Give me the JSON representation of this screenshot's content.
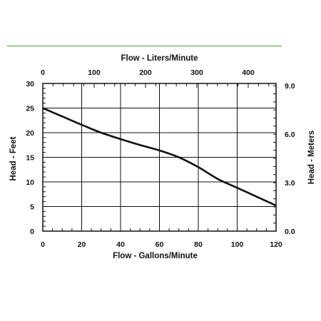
{
  "colors": {
    "rule": "#5a9a3c",
    "line": "#111111",
    "grid": "#111111"
  },
  "chart_data": {
    "type": "line",
    "grid": true,
    "x": {
      "label": "Flow - Gallons/Minute",
      "range": [
        0,
        120
      ],
      "ticks": [
        0,
        20,
        40,
        60,
        80,
        100,
        120
      ],
      "tick_labels": [
        "0",
        "20",
        "40",
        "60",
        "80",
        "100",
        "120"
      ]
    },
    "x_top": {
      "label": "Flow - Liters/Minute",
      "range": [
        0,
        454.2
      ],
      "ticks": [
        0,
        100,
        200,
        300,
        400
      ],
      "tick_labels": [
        "0",
        "100",
        "200",
        "300",
        "400"
      ]
    },
    "y_left": {
      "label": "Head - Feet",
      "range": [
        0,
        30
      ],
      "ticks": [
        0,
        5,
        10,
        15,
        20,
        25,
        30
      ],
      "tick_labels": [
        "0",
        "5",
        "10",
        "15",
        "20",
        "25",
        "30"
      ]
    },
    "y_right": {
      "label": "Head - Meters",
      "range": [
        0,
        9.14
      ],
      "ticks": [
        0,
        3,
        6,
        9
      ],
      "tick_labels": [
        "0.0",
        "3.0",
        "6.0",
        "9.0"
      ]
    },
    "series": [
      {
        "x": [
          0,
          10,
          20,
          30,
          40,
          50,
          60,
          70,
          80,
          90,
          100,
          110,
          120
        ],
        "y": [
          25.0,
          23.3,
          21.6,
          20.0,
          18.7,
          17.5,
          16.4,
          15.0,
          13.0,
          10.6,
          8.8,
          7.0,
          5.2
        ]
      }
    ]
  }
}
